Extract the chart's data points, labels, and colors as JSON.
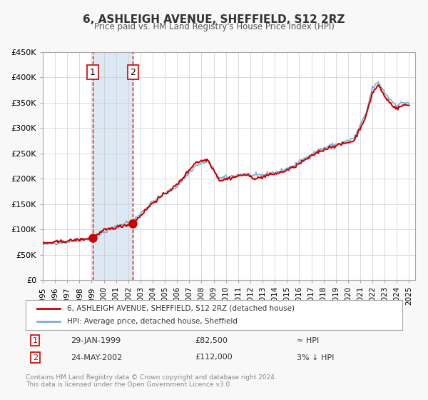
{
  "title": "6, ASHLEIGH AVENUE, SHEFFIELD, S12 2RZ",
  "subtitle": "Price paid vs. HM Land Registry's House Price Index (HPI)",
  "xlabel": "",
  "ylabel": "",
  "xlim": [
    1995.0,
    2025.5
  ],
  "ylim": [
    0,
    450000
  ],
  "yticks": [
    0,
    50000,
    100000,
    150000,
    200000,
    250000,
    300000,
    350000,
    400000,
    450000
  ],
  "ytick_labels": [
    "£0",
    "£50K",
    "£100K",
    "£150K",
    "£200K",
    "£250K",
    "£300K",
    "£350K",
    "£400K",
    "£450K"
  ],
  "xticks": [
    1995,
    1996,
    1997,
    1998,
    1999,
    2000,
    2001,
    2002,
    2003,
    2004,
    2005,
    2006,
    2007,
    2008,
    2009,
    2010,
    2011,
    2012,
    2013,
    2014,
    2015,
    2016,
    2017,
    2018,
    2019,
    2020,
    2021,
    2022,
    2023,
    2024,
    2025
  ],
  "transaction1": {
    "date": "29-JAN-1999",
    "year": 1999.08,
    "price": 82500,
    "label": "1"
  },
  "transaction2": {
    "date": "24-MAY-2002",
    "year": 2002.39,
    "price": 112000,
    "label": "2"
  },
  "shade_start": 1999.08,
  "shade_end": 2002.39,
  "shade_color": "#dce9f5",
  "vline_color": "#cc0000",
  "dot_color": "#cc0000",
  "hpi_line_color": "#7ab0d4",
  "price_line_color": "#cc0000",
  "legend_line1": "6, ASHLEIGH AVENUE, SHEFFIELD, S12 2RZ (detached house)",
  "legend_line2": "HPI: Average price, detached house, Sheffield",
  "annotation1_date": "29-JAN-1999",
  "annotation1_price": "£82,500",
  "annotation1_hpi": "≈ HPI",
  "annotation2_date": "24-MAY-2002",
  "annotation2_price": "£112,000",
  "annotation2_hpi": "3% ↓ HPI",
  "footnote": "Contains HM Land Registry data © Crown copyright and database right 2024.\nThis data is licensed under the Open Government Licence v3.0.",
  "background_color": "#f8f8f8",
  "plot_bg_color": "#ffffff",
  "grid_color": "#cccccc"
}
